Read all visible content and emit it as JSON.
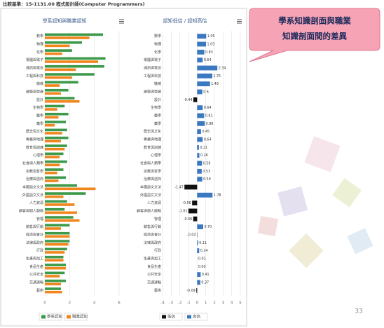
{
  "header": {
    "title": "比較基準：15-1131.00 程式設計師(Computer Programmers)"
  },
  "callout": {
    "lines": [
      "學系知識剖面與職業",
      "知識剖面間的差異"
    ]
  },
  "page_number": "33",
  "chart_data": [
    {
      "type": "bar",
      "title": "學系認知與職業認知",
      "categories": [
        "數學",
        "物理",
        "化學",
        "電腦與電子",
        "通訊與電信",
        "工程與科技",
        "機械",
        "建築與營建",
        "設計",
        "生物學",
        "醫學",
        "藥學",
        "歷史與文化",
        "專業與地理",
        "教育與訓練",
        "心理學",
        "社會與人類學",
        "宗教與哲學",
        "治療與諮商",
        "本國語文文法",
        "外國語文文法",
        "人力資源",
        "顧客與個人服務",
        "管理",
        "銷售與行銷",
        "經濟與會計",
        "法律與政府",
        "行政",
        "生產與加工",
        "食品生產",
        "公共安全",
        "交通運輸",
        "藝術"
      ],
      "series": [
        {
          "name": "學系認知",
          "color": "#3d9a4b",
          "values": [
            4.7,
            3.0,
            2.2,
            4.9,
            4.8,
            4.0,
            2.7,
            1.9,
            2.4,
            1.6,
            1.9,
            1.7,
            1.8,
            1.9,
            1.8,
            1.5,
            1.8,
            1.5,
            1.7,
            2.6,
            3.3,
            1.8,
            1.6,
            2.3,
            2.0,
            2.0,
            2.0,
            1.8,
            1.5,
            1.7,
            1.6,
            1.7,
            1.3
          ]
        },
        {
          "name": "職業認知",
          "color": "#f0861c",
          "values": [
            3.6,
            2.0,
            1.4,
            4.3,
            2.5,
            2.2,
            1.2,
            1.3,
            2.8,
            1.0,
            1.1,
            0.8,
            1.4,
            1.3,
            1.6,
            1.2,
            1.2,
            1.0,
            1.1,
            4.1,
            1.5,
            2.4,
            2.6,
            2.8,
            1.3,
            2.0,
            1.9,
            1.6,
            1.5,
            1.7,
            1.2,
            1.3,
            1.4
          ]
        }
      ],
      "xlim": [
        0,
        6
      ],
      "xticks": [
        0,
        2,
        4,
        6
      ],
      "grid": true
    },
    {
      "type": "bar",
      "title": "認知低估 / 認知高估",
      "categories": [
        "數學",
        "物理",
        "化學",
        "電腦與電子",
        "通訊與電信",
        "工程與科技",
        "機械",
        "建築與營建",
        "設計",
        "生物學",
        "醫學",
        "藥學",
        "歷史與文化",
        "專業與地理",
        "教育與訓練",
        "心理學",
        "社會與人類學",
        "宗教與哲學",
        "治療與諮商",
        "本國語文文法",
        "外國語文文法",
        "人力資源",
        "顧客與個人服務",
        "管理",
        "銷售與行銷",
        "經濟與會計",
        "法律與政府",
        "行政",
        "生產與加工",
        "食品生產",
        "公共安全",
        "交通運輸",
        "藝術"
      ],
      "values": [
        1.05,
        1.03,
        0.83,
        0.64,
        2.34,
        1.75,
        1.49,
        0.6,
        -0.44,
        0.64,
        0.81,
        0.88,
        0.45,
        0.64,
        0.21,
        0.26,
        0.56,
        0.53,
        0.59,
        -1.47,
        1.78,
        -0.58,
        -1.01,
        -0.46,
        0.7,
        -0.03,
        0.11,
        0.24,
        0.01,
        0.0,
        0.41,
        0.37,
        -0.09
      ],
      "value_labels": [
        "1.05",
        "1.03",
        "0.83",
        "0.64",
        "2.34",
        "1.75",
        "1.49",
        "0.6",
        "-0.44",
        "0.64",
        "0.81",
        "0.88",
        "0.45",
        "0.64",
        "0.21",
        "0.26",
        "0.56",
        "0.53",
        "0.59",
        "-1.47",
        "1.78",
        "-0.58",
        "-1.01",
        "-0.46",
        "0.70",
        "-0.03",
        "0.11",
        "0.24",
        "0.01",
        "0.00",
        "0.41",
        "0.37",
        "-0.09"
      ],
      "legend": [
        {
          "name": "低估",
          "color": "#111111"
        },
        {
          "name": "高估",
          "color": "#3a78c2"
        }
      ],
      "xlim": [
        -4,
        5
      ],
      "xticks": [
        -4,
        -3,
        -2,
        -1,
        0,
        1,
        2,
        3,
        4,
        5
      ],
      "grid": true
    }
  ]
}
